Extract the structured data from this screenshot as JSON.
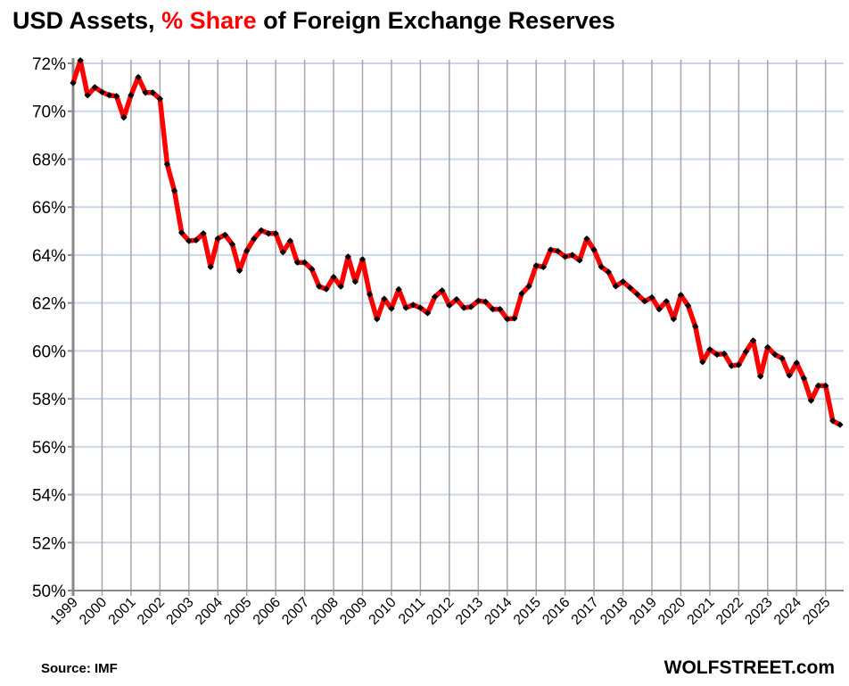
{
  "title": {
    "part1": "USD Assets, ",
    "highlight": "% Share",
    "part2": " of Foreign Exchange Reserves"
  },
  "source": "Source: IMF",
  "brand": "WOLFSTREET.com",
  "chart_data": {
    "type": "line",
    "title": "USD Assets, % Share of Foreign Exchange Reserves",
    "xlabel": "",
    "ylabel": "",
    "frequency": "quarterly",
    "start": "1999Q1",
    "end": "2025Q3",
    "ylim": [
      50,
      72
    ],
    "yticks": [
      "50%",
      "52%",
      "54%",
      "56%",
      "58%",
      "60%",
      "62%",
      "64%",
      "66%",
      "68%",
      "70%",
      "72%"
    ],
    "xticks": [
      "1999",
      "2000",
      "2001",
      "2002",
      "2003",
      "2004",
      "2005",
      "2006",
      "2007",
      "2008",
      "2009",
      "2010",
      "2011",
      "2012",
      "2013",
      "2014",
      "2015",
      "2016",
      "2017",
      "2018",
      "2019",
      "2020",
      "2021",
      "2022",
      "2023",
      "2024",
      "2025"
    ],
    "grid": true,
    "legend": "none",
    "colors": {
      "line": "#ff0000",
      "markers": "#000000",
      "grid_h": "#c9d7e8",
      "grid_v": "#a6a6a6"
    },
    "series": [
      {
        "values": [
          71.18,
          72.12,
          70.67,
          71.0,
          70.8,
          70.67,
          70.63,
          69.74,
          70.67,
          71.42,
          70.78,
          70.78,
          70.52,
          67.79,
          66.68,
          64.93,
          64.59,
          64.62,
          64.9,
          63.51,
          64.69,
          64.84,
          64.45,
          63.35,
          64.18,
          64.68,
          65.03,
          64.9,
          64.9,
          64.12,
          64.59,
          63.69,
          63.69,
          63.41,
          62.69,
          62.58,
          63.08,
          62.69,
          63.93,
          62.89,
          63.82,
          62.36,
          61.33,
          62.17,
          61.77,
          62.57,
          61.8,
          61.92,
          61.8,
          61.58,
          62.26,
          62.52,
          61.9,
          62.15,
          61.8,
          61.84,
          62.09,
          62.05,
          61.74,
          61.74,
          61.33,
          61.36,
          62.39,
          62.7,
          63.56,
          63.5,
          64.22,
          64.16,
          63.93,
          64.0,
          63.78,
          64.68,
          64.22,
          63.51,
          63.29,
          62.7,
          62.89,
          62.63,
          62.36,
          62.07,
          62.23,
          61.74,
          62.07,
          61.33,
          62.33,
          61.89,
          61.02,
          59.54,
          60.06,
          59.85,
          59.88,
          59.38,
          59.42,
          59.97,
          60.43,
          58.94,
          60.15,
          59.85,
          59.69,
          58.98,
          59.5,
          58.86,
          57.93,
          58.55,
          58.55,
          57.08,
          56.92
        ]
      }
    ]
  }
}
